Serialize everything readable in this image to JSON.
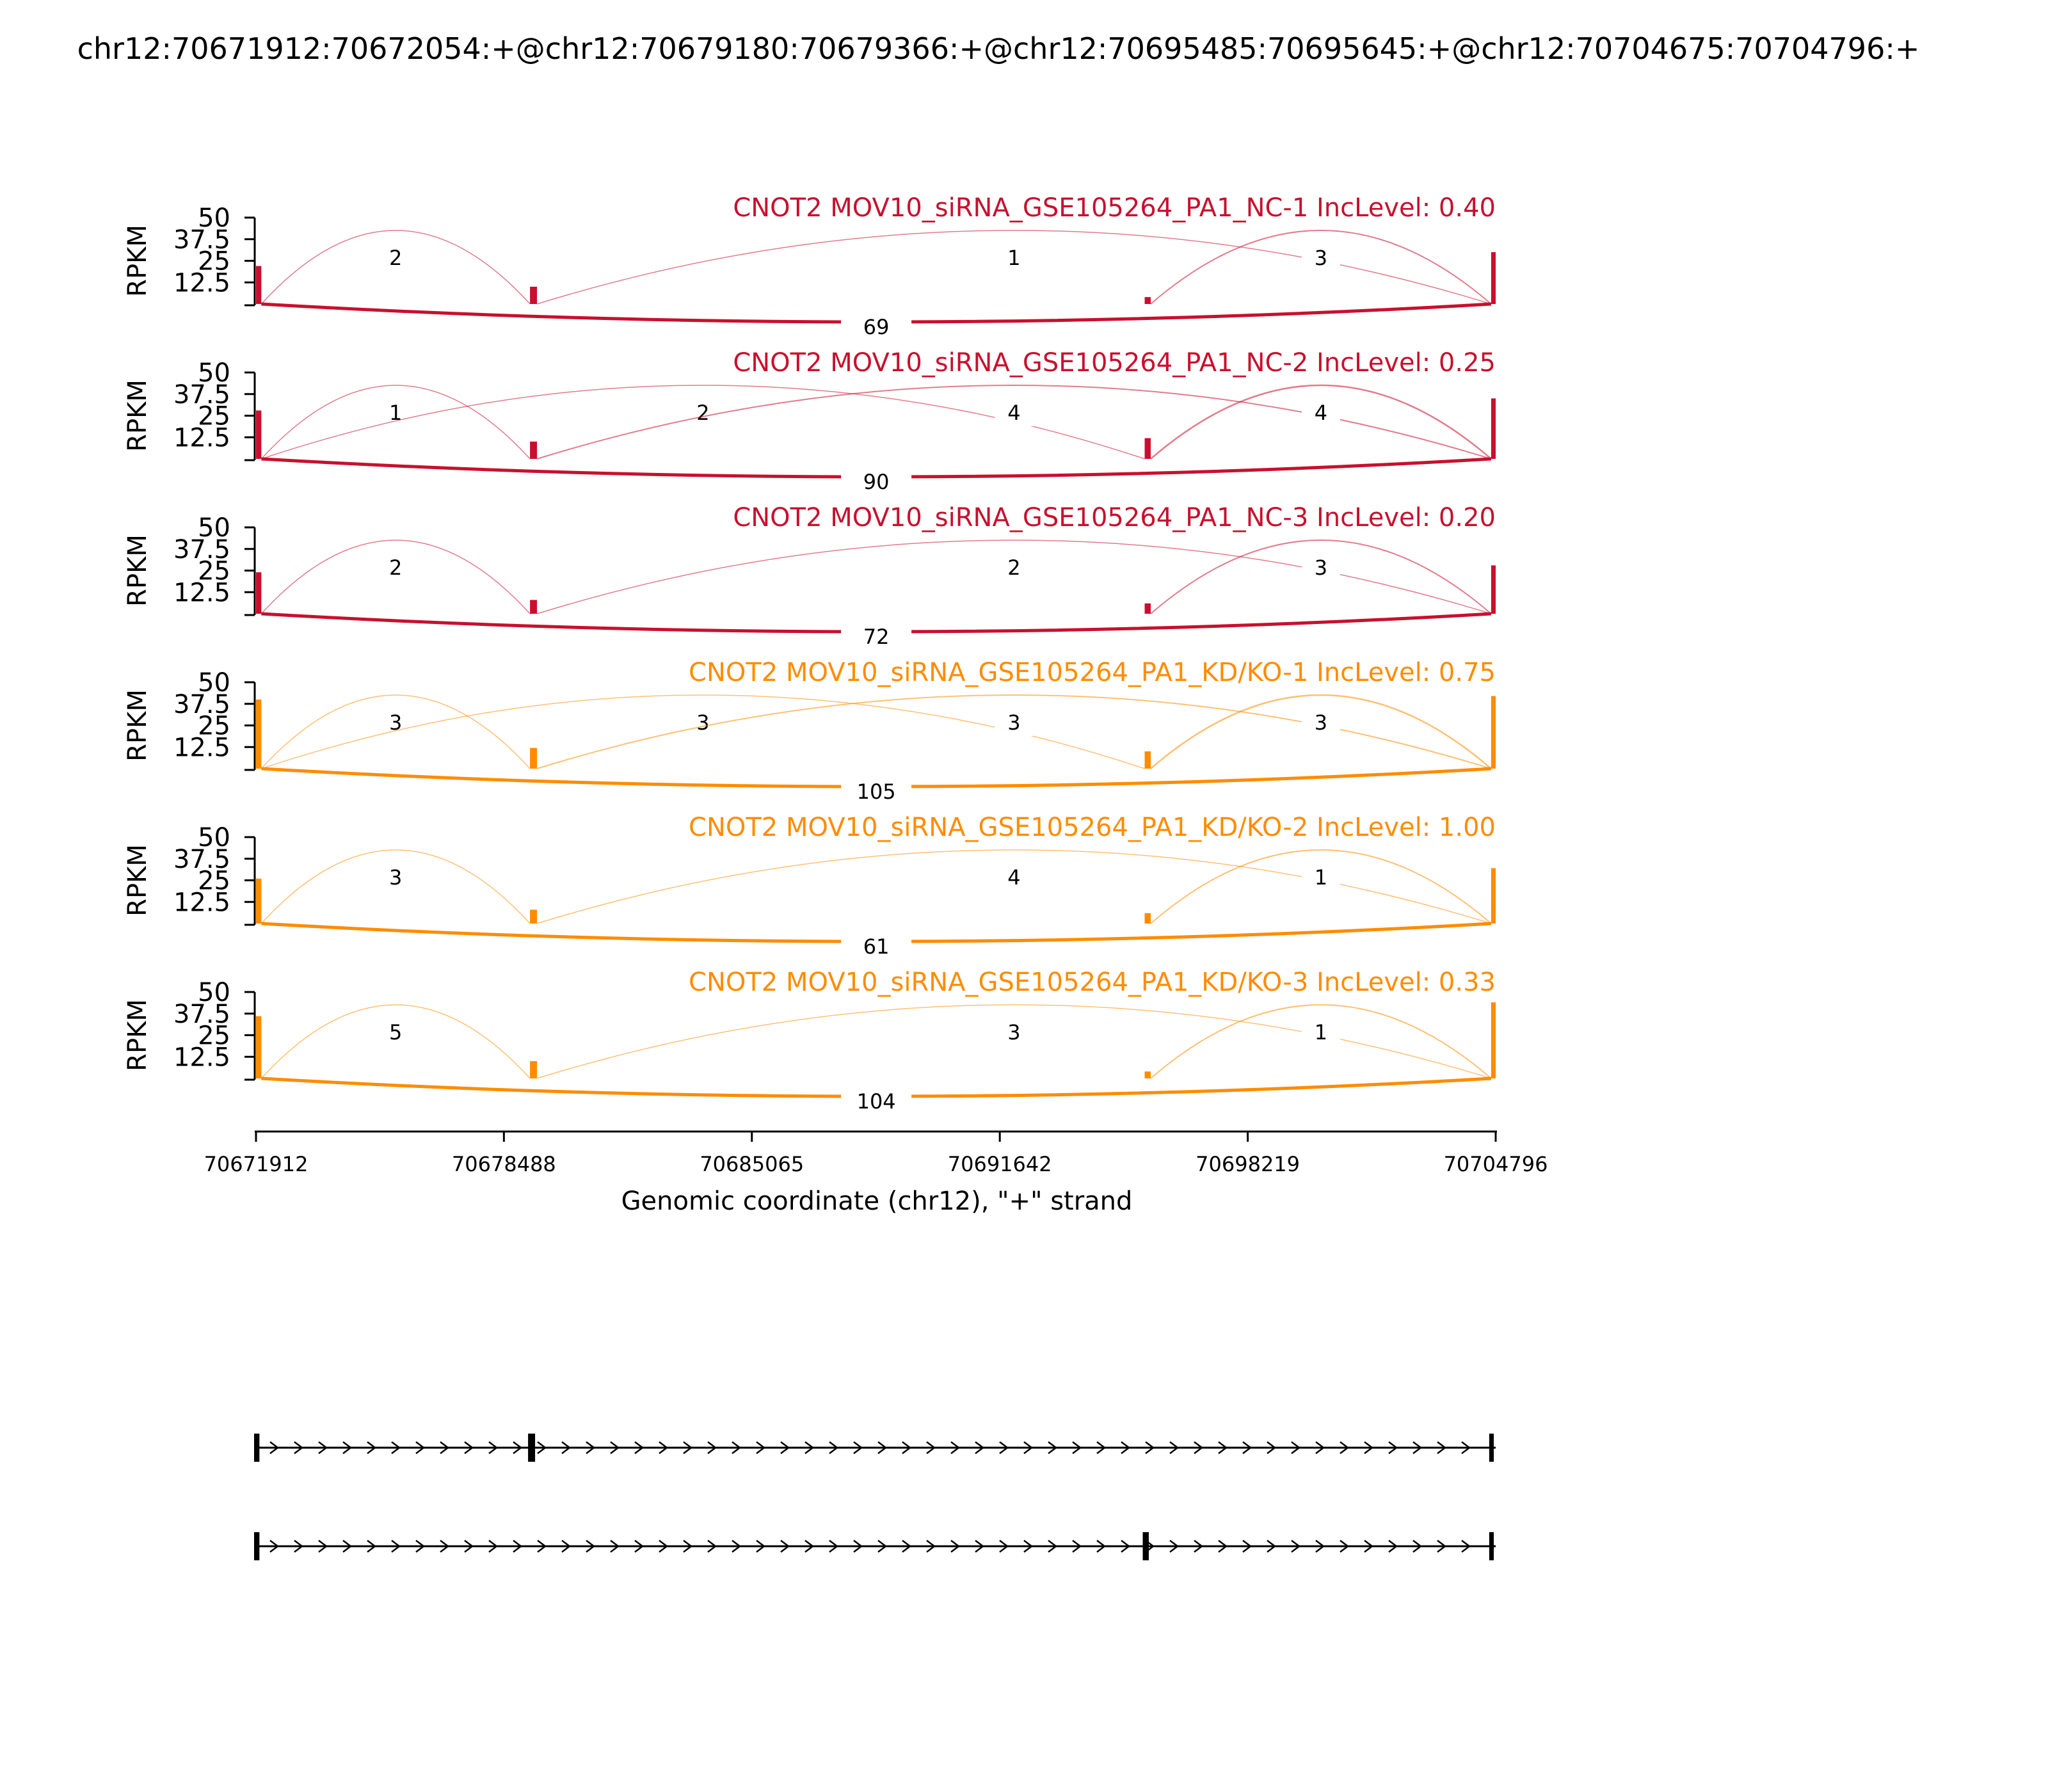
{
  "chart_data": {
    "type": "sashimi",
    "title": "chr12:70671912:70672054:+@chr12:70679180:70679366:+@chr12:70695485:70695645:+@chr12:70704675:70704796:+",
    "xlabel": "Genomic coordinate (chr12), \"+\" strand",
    "ylabel": "RPKM",
    "xlim": [
      70671912,
      70704796
    ],
    "x_ticks": [
      "70671912",
      "70678488",
      "70685065",
      "70691642",
      "70698219",
      "70704796"
    ],
    "ylim": [
      0,
      50
    ],
    "y_ticks": [
      "12.5",
      "25",
      "37.5",
      "50"
    ],
    "colors": {
      "control": "#c8102e",
      "treatment": "#ff8c00",
      "axis": "#000000"
    },
    "exons": [
      {
        "start": 70671912,
        "end": 70672054
      },
      {
        "start": 70679180,
        "end": 70679366
      },
      {
        "start": 70695485,
        "end": 70695645
      },
      {
        "start": 70704675,
        "end": 70704796
      }
    ],
    "panels": [
      {
        "label": "CNOT2 MOV10_siRNA_GSE105264_PA1_NC-1 IncLevel: 0.40",
        "group": "control",
        "coverage": [
          22,
          10,
          4,
          30
        ],
        "junctions": [
          {
            "from": 70672054,
            "to": 70679180,
            "count": "2",
            "side": "top"
          },
          {
            "from": 70679366,
            "to": 70704675,
            "count": "1",
            "side": "top"
          },
          {
            "from": 70695645,
            "to": 70704675,
            "count": "3",
            "side": "top"
          },
          {
            "from": 70672054,
            "to": 70704675,
            "count": "69",
            "side": "bottom"
          }
        ]
      },
      {
        "label": "CNOT2 MOV10_siRNA_GSE105264_PA1_NC-2 IncLevel: 0.25",
        "group": "control",
        "coverage": [
          28,
          10,
          12,
          35
        ],
        "junctions": [
          {
            "from": 70672054,
            "to": 70679180,
            "count": "1",
            "side": "top"
          },
          {
            "from": 70672054,
            "to": 70695485,
            "count": "2",
            "side": "top"
          },
          {
            "from": 70679366,
            "to": 70704675,
            "count": "4",
            "side": "top"
          },
          {
            "from": 70695645,
            "to": 70704675,
            "count": "4",
            "side": "top"
          },
          {
            "from": 70672054,
            "to": 70704675,
            "count": "90",
            "side": "bottom"
          }
        ]
      },
      {
        "label": "CNOT2 MOV10_siRNA_GSE105264_PA1_NC-3 IncLevel: 0.20",
        "group": "control",
        "coverage": [
          24,
          8,
          6,
          28
        ],
        "junctions": [
          {
            "from": 70672054,
            "to": 70679180,
            "count": "2",
            "side": "top"
          },
          {
            "from": 70679366,
            "to": 70704675,
            "count": "2",
            "side": "top"
          },
          {
            "from": 70695645,
            "to": 70704675,
            "count": "3",
            "side": "top"
          },
          {
            "from": 70672054,
            "to": 70704675,
            "count": "72",
            "side": "bottom"
          }
        ]
      },
      {
        "label": "CNOT2 MOV10_siRNA_GSE105264_PA1_KD/KO-1 IncLevel: 0.75",
        "group": "treatment",
        "coverage": [
          40,
          12,
          10,
          42
        ],
        "junctions": [
          {
            "from": 70672054,
            "to": 70679180,
            "count": "3",
            "side": "top"
          },
          {
            "from": 70672054,
            "to": 70695485,
            "count": "3",
            "side": "top"
          },
          {
            "from": 70679366,
            "to": 70704675,
            "count": "3",
            "side": "top"
          },
          {
            "from": 70695645,
            "to": 70704675,
            "count": "3",
            "side": "top"
          },
          {
            "from": 70672054,
            "to": 70704675,
            "count": "105",
            "side": "bottom"
          }
        ]
      },
      {
        "label": "CNOT2 MOV10_siRNA_GSE105264_PA1_KD/KO-2 IncLevel: 1.00",
        "group": "treatment",
        "coverage": [
          26,
          8,
          6,
          32
        ],
        "junctions": [
          {
            "from": 70672054,
            "to": 70679180,
            "count": "3",
            "side": "top"
          },
          {
            "from": 70679366,
            "to": 70704675,
            "count": "4",
            "side": "top"
          },
          {
            "from": 70695645,
            "to": 70704675,
            "count": "1",
            "side": "top"
          },
          {
            "from": 70672054,
            "to": 70704675,
            "count": "61",
            "side": "bottom"
          }
        ]
      },
      {
        "label": "CNOT2 MOV10_siRNA_GSE105264_PA1_KD/KO-3 IncLevel: 0.33",
        "group": "treatment",
        "coverage": [
          36,
          10,
          4,
          44
        ],
        "junctions": [
          {
            "from": 70672054,
            "to": 70679180,
            "count": "5",
            "side": "top"
          },
          {
            "from": 70679366,
            "to": 70704675,
            "count": "3",
            "side": "top"
          },
          {
            "from": 70695645,
            "to": 70704675,
            "count": "1",
            "side": "top"
          },
          {
            "from": 70672054,
            "to": 70704675,
            "count": "104",
            "side": "bottom"
          }
        ]
      }
    ],
    "transcripts": [
      {
        "exons": [
          [
            70671912,
            70672054
          ],
          [
            70679180,
            70679366
          ],
          [
            70704675,
            70704796
          ]
        ]
      },
      {
        "exons": [
          [
            70671912,
            70672054
          ],
          [
            70695485,
            70695645
          ],
          [
            70704675,
            70704796
          ]
        ]
      }
    ]
  }
}
